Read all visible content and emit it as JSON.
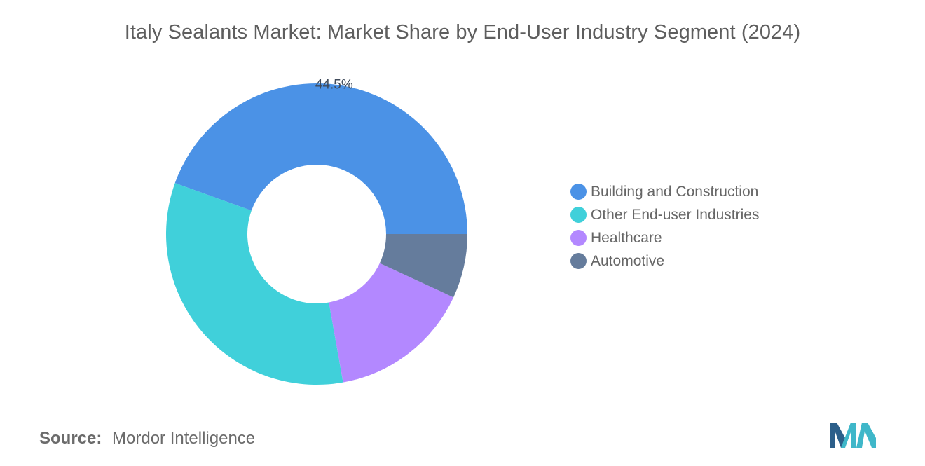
{
  "chart_data": {
    "type": "pie",
    "variant": "donut",
    "title": "Italy Sealants Market: Market Share by End-User Industry Segment (2024)",
    "categories": [
      "Building and Construction",
      "Other End-user Industries",
      "Healthcare",
      "Automotive"
    ],
    "values": [
      44.5,
      33.3,
      15.3,
      6.9
    ],
    "unit": "%",
    "colors": [
      "#4b92e6",
      "#40d0da",
      "#b388ff",
      "#657c9c"
    ],
    "data_labels": [
      {
        "category": "Building and Construction",
        "text": "44.5%"
      }
    ],
    "legend_position": "right"
  },
  "source": {
    "prefix": "Source:",
    "name": "Mordor Intelligence"
  },
  "logo": {
    "icon": "mordor-intelligence-logo-icon",
    "colors": [
      "#2c5f8a",
      "#3fb7c9"
    ]
  }
}
